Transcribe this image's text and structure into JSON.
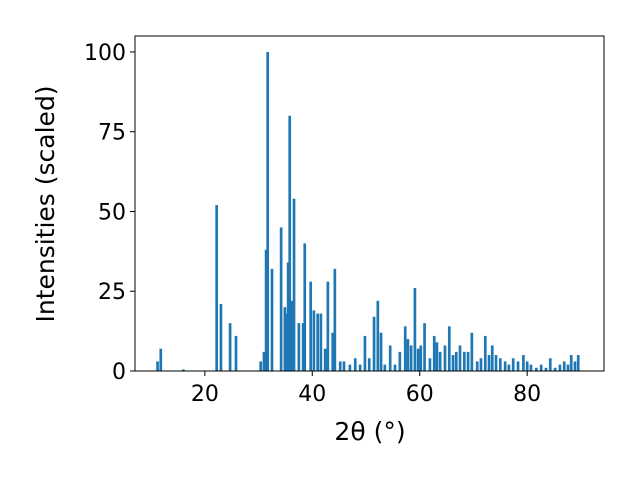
{
  "chart_data": {
    "type": "bar",
    "xlabel": "2θ (°)",
    "ylabel": "Intensities (scaled)",
    "color": "#1f77b4",
    "bar_width": 0.5,
    "x": [
      11.2,
      11.8,
      16.0,
      22.2,
      23.0,
      24.7,
      25.8,
      30.4,
      31.0,
      31.4,
      31.7,
      32.5,
      34.2,
      34.9,
      35.3,
      35.5,
      35.8,
      36.2,
      36.6,
      37.5,
      38.3,
      38.6,
      39.7,
      40.3,
      41.0,
      41.6,
      42.4,
      42.9,
      43.8,
      44.2,
      45.2,
      45.9,
      47.0,
      48.0,
      48.9,
      49.8,
      50.6,
      51.5,
      52.2,
      52.8,
      53.5,
      54.5,
      55.4,
      56.3,
      57.3,
      57.8,
      58.4,
      59.1,
      59.7,
      60.2,
      60.9,
      61.9,
      62.7,
      63.2,
      63.8,
      64.7,
      65.5,
      66.2,
      66.8,
      67.5,
      68.3,
      69.0,
      69.7,
      70.7,
      71.4,
      72.2,
      72.9,
      73.5,
      74.2,
      75.0,
      75.9,
      76.6,
      77.4,
      78.3,
      79.3,
      80.0,
      80.7,
      81.7,
      82.6,
      83.5,
      84.3,
      85.2,
      86.1,
      86.9,
      87.6,
      88.2,
      88.9,
      89.5
    ],
    "values": [
      3,
      7,
      0.5,
      52,
      21,
      15,
      11,
      3,
      6,
      38,
      100,
      32,
      45,
      20,
      18,
      34,
      80,
      22,
      54,
      15,
      15,
      40,
      28,
      19,
      18,
      18,
      7,
      28,
      12,
      32,
      3,
      3,
      2,
      4,
      2,
      11,
      4,
      17,
      22,
      12,
      2,
      8,
      2,
      6,
      14,
      10,
      8,
      26,
      7,
      8,
      15,
      4,
      11,
      9,
      6,
      8,
      14,
      5,
      6,
      8,
      6,
      6,
      12,
      3,
      4,
      11,
      5,
      8,
      5,
      4,
      3,
      2,
      4,
      3,
      5,
      3,
      2,
      1,
      2,
      1,
      4,
      1,
      2,
      3,
      2,
      5,
      3,
      5
    ],
    "xlim": [
      7,
      94.3
    ],
    "ylim": [
      0,
      105
    ],
    "xticks": [
      20,
      40,
      60,
      80
    ],
    "yticks": [
      0,
      25,
      50,
      75,
      100
    ]
  }
}
